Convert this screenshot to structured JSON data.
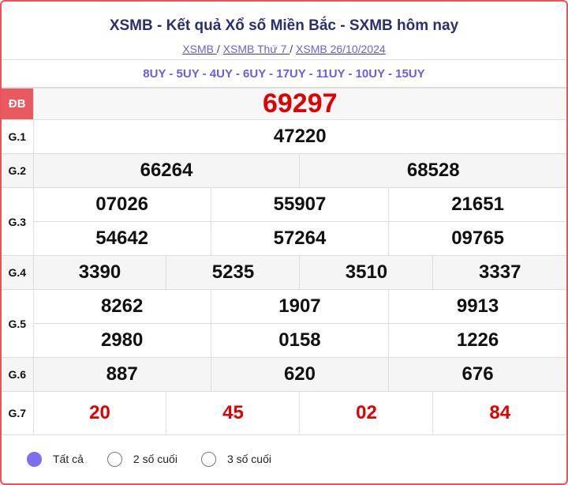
{
  "header": {
    "title": "XSMB - Kết quả Xổ số Miền Bắc - SXMB hôm nay",
    "breadcrumbs": [
      "XSMB ",
      "XSMB Thứ 7 ",
      "XSMB 26/10/2024"
    ],
    "sep": "/"
  },
  "codes": "8UY - 5UY - 4UY - 6UY - 17UY - 11UY - 10UY - 15UY",
  "prizes": {
    "db": {
      "label": "ĐB",
      "values": [
        "69297"
      ]
    },
    "g1": {
      "label": "G.1",
      "values": [
        "47220"
      ]
    },
    "g2": {
      "label": "G.2",
      "values": [
        "66264",
        "68528"
      ]
    },
    "g3": {
      "label": "G.3",
      "values": [
        "07026",
        "55907",
        "21651",
        "54642",
        "57264",
        "09765"
      ]
    },
    "g4": {
      "label": "G.4",
      "values": [
        "3390",
        "5235",
        "3510",
        "3337"
      ]
    },
    "g5": {
      "label": "G.5",
      "values": [
        "8262",
        "1907",
        "9913",
        "2980",
        "0158",
        "1226"
      ]
    },
    "g6": {
      "label": "G.6",
      "values": [
        "887",
        "620",
        "676"
      ]
    },
    "g7": {
      "label": "G.7",
      "values": [
        "20",
        "45",
        "02",
        "84"
      ]
    }
  },
  "filters": [
    {
      "label": "Tất cả",
      "selected": true
    },
    {
      "label": "2 số cuối",
      "selected": false
    },
    {
      "label": "3 số cuối",
      "selected": false
    }
  ],
  "colors": {
    "accent": "#7b6ff0",
    "special": "#e00000",
    "border": "#e5555a"
  }
}
